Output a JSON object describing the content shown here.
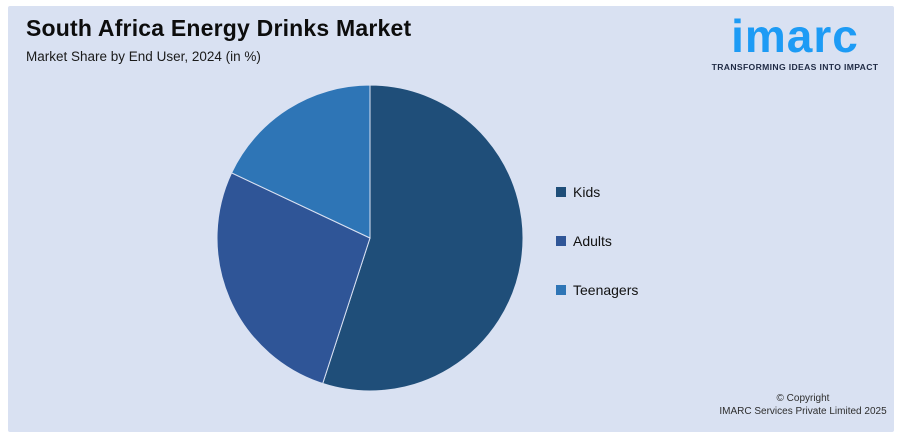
{
  "header": {
    "title": "South Africa Energy Drinks Market",
    "subtitle": "Market Share by End User, 2024 (in %)"
  },
  "logo": {
    "brand": "imarc",
    "tagline": "TRANSFORMING IDEAS INTO IMPACT",
    "brand_color": "#1D9BF5",
    "tagline_color": "#1F2A44"
  },
  "chart_data": {
    "type": "pie",
    "title": "South Africa Energy Drinks Market",
    "subtitle": "Market Share by End User, 2024 (in %)",
    "unit": "%",
    "categories": [
      "Kids",
      "Adults",
      "Teenagers"
    ],
    "values": [
      55,
      27,
      18
    ],
    "colors": [
      "#1F4E79",
      "#2F5597",
      "#2E75B6"
    ],
    "start_angle_deg": 0,
    "direction": "clockwise",
    "legend_position": "right",
    "data_labels": false
  },
  "footer": {
    "line1": "© Copyright",
    "line2": "IMARC Services Private Limited 2025"
  },
  "background": {
    "page": "#FFFFFF",
    "panel": "#D9E1F2"
  }
}
